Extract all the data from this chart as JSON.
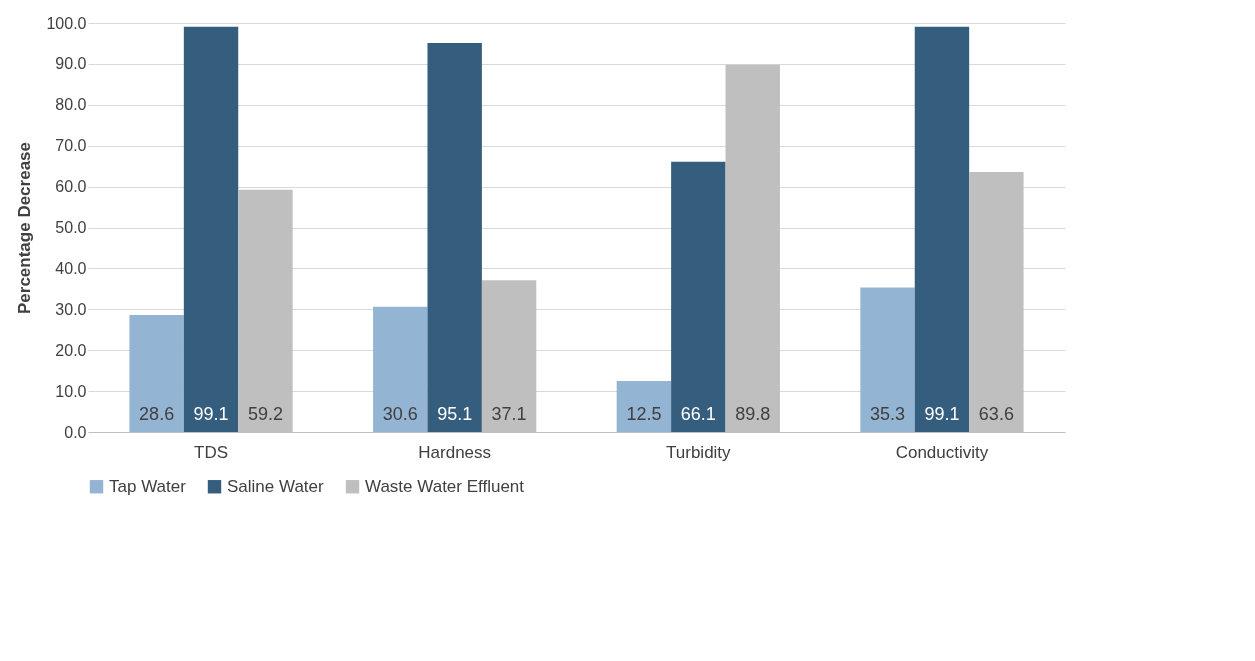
{
  "chart_data": {
    "type": "bar",
    "ylabel": "Percentage Decrease",
    "categories": [
      "TDS",
      "Hardness",
      "Turbidity",
      "Conductivity"
    ],
    "series": [
      {
        "name": "Tap Water",
        "color": "#93b4d2",
        "values": [
          28.6,
          30.6,
          12.5,
          35.3
        ]
      },
      {
        "name": "Saline Water",
        "color": "#355e7e",
        "values": [
          99.1,
          95.1,
          66.1,
          99.1
        ]
      },
      {
        "name": "Waste Water Effluent",
        "color": "#bfbfbf",
        "values": [
          59.2,
          37.1,
          89.8,
          63.6
        ]
      }
    ],
    "ylim": [
      0,
      100
    ],
    "yticks": [
      {
        "value": 0,
        "label": "0.0"
      },
      {
        "value": 10,
        "label": "10.0"
      },
      {
        "value": 20,
        "label": "20.0"
      },
      {
        "value": 30,
        "label": "30.0"
      },
      {
        "value": 40,
        "label": "40.0"
      },
      {
        "value": 50,
        "label": "50.0"
      },
      {
        "value": 60,
        "label": "60.0"
      },
      {
        "value": 70,
        "label": "70.0"
      },
      {
        "value": 80,
        "label": "80.0"
      },
      {
        "value": 90,
        "label": "90.0"
      },
      {
        "value": 100,
        "label": "100.0"
      }
    ],
    "grid": "y",
    "legend": "bottom",
    "data_labels": true
  }
}
